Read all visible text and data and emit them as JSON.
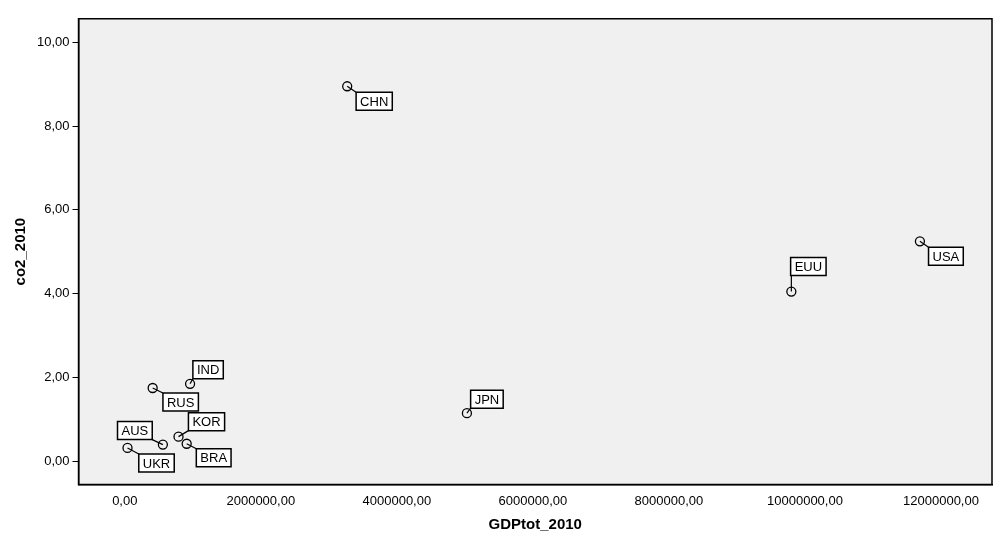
{
  "chart_data": {
    "type": "scatter",
    "xlabel": "GDPtot_2010",
    "ylabel": "co2_2010",
    "x": [
      3270000,
      11690000,
      9800000,
      5030000,
      960000,
      410000,
      560000,
      40000,
      790000,
      910000
    ],
    "values": [
      8.95,
      5.25,
      4.05,
      1.15,
      1.85,
      1.75,
      0.4,
      0.32,
      0.59,
      0.42
    ],
    "color": "#000000",
    "marker": "circle",
    "grid": false,
    "legend": false,
    "xlim": [
      -680000,
      12750000
    ],
    "ylim": [
      -0.55,
      10.56
    ],
    "xticks": [
      {
        "value": 0,
        "label": "0,00"
      },
      {
        "value": 2000000,
        "label": "2000000,00"
      },
      {
        "value": 4000000,
        "label": "4000000,00"
      },
      {
        "value": 6000000,
        "label": "6000000,00"
      },
      {
        "value": 8000000,
        "label": "8000000,00"
      },
      {
        "value": 10000000,
        "label": "10000000,00"
      },
      {
        "value": 12000000,
        "label": "12000000,00"
      }
    ],
    "yticks": [
      {
        "value": 0,
        "label": "0,00"
      },
      {
        "value": 2,
        "label": "2,00"
      },
      {
        "value": 4,
        "label": "4,00"
      },
      {
        "value": 6,
        "label": "6,00"
      },
      {
        "value": 8,
        "label": "8,00"
      },
      {
        "value": 10,
        "label": "10,00"
      }
    ],
    "annotations": [
      {
        "text": "CHN",
        "x": 3270000,
        "y": 8.95
      },
      {
        "text": "USA",
        "x": 11690000,
        "y": 5.25
      },
      {
        "text": "EUU",
        "x": 9800000,
        "y": 4.05
      },
      {
        "text": "JPN",
        "x": 5030000,
        "y": 1.15
      },
      {
        "text": "IND",
        "x": 960000,
        "y": 1.85
      },
      {
        "text": "RUS",
        "x": 410000,
        "y": 1.75
      },
      {
        "text": "AUS",
        "x": 560000,
        "y": 0.4
      },
      {
        "text": "UKR",
        "x": 40000,
        "y": 0.32
      },
      {
        "text": "KOR",
        "x": 790000,
        "y": 0.59
      },
      {
        "text": "BRA",
        "x": 910000,
        "y": 0.42
      }
    ]
  }
}
